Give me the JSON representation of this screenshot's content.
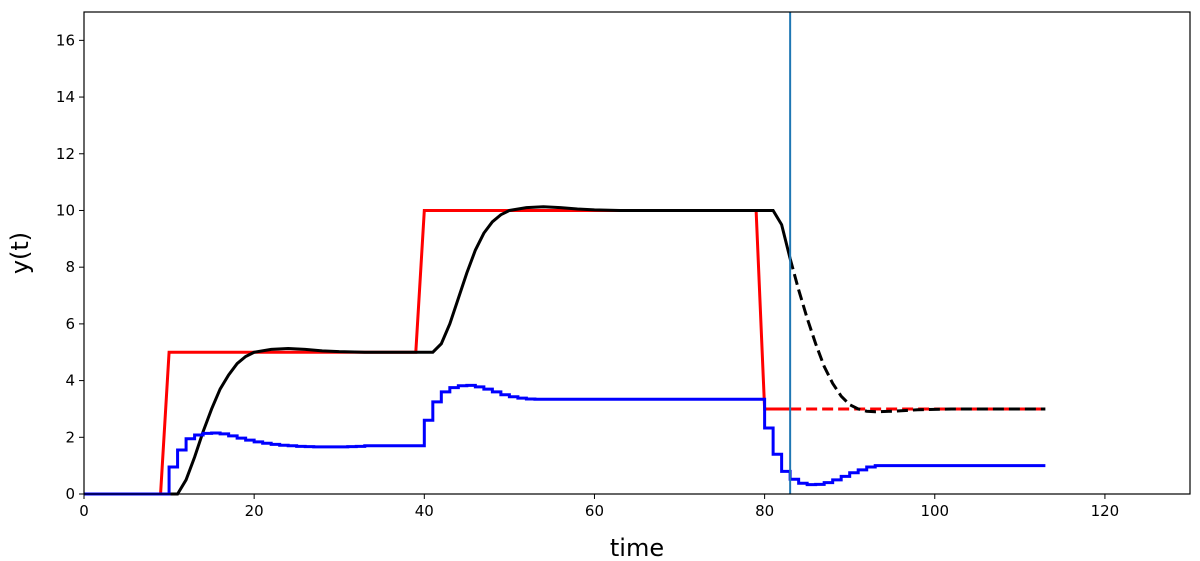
{
  "chart_data": {
    "type": "line",
    "title": "",
    "xlabel": "time",
    "ylabel": "y(t)",
    "xlim": [
      0,
      130
    ],
    "ylim": [
      0,
      17
    ],
    "x_ticks": [
      0,
      20,
      40,
      60,
      80,
      100,
      120
    ],
    "y_ticks": [
      0,
      2,
      4,
      6,
      8,
      10,
      12,
      14,
      16
    ],
    "grid": false,
    "vline": {
      "x": 83,
      "color": "#1f77b4"
    },
    "series": [
      {
        "color": "#ff0000",
        "style": "solid",
        "step": false,
        "points": [
          [
            0,
            0
          ],
          [
            9,
            0
          ],
          [
            10,
            5
          ],
          [
            39,
            5
          ],
          [
            40,
            10
          ],
          [
            79,
            10
          ],
          [
            80,
            3
          ],
          [
            83,
            3
          ]
        ]
      },
      {
        "color": "#ff0000",
        "style": "dashed",
        "step": false,
        "points": [
          [
            83,
            3
          ],
          [
            113,
            3
          ]
        ]
      },
      {
        "color": "#000000",
        "style": "solid",
        "step": false,
        "points": [
          [
            0,
            0
          ],
          [
            10,
            0
          ],
          [
            11,
            0
          ],
          [
            12,
            0.5
          ],
          [
            13,
            1.3
          ],
          [
            14,
            2.2
          ],
          [
            15,
            3.0
          ],
          [
            16,
            3.7
          ],
          [
            17,
            4.2
          ],
          [
            18,
            4.6
          ],
          [
            19,
            4.85
          ],
          [
            20,
            5.0
          ],
          [
            22,
            5.1
          ],
          [
            24,
            5.13
          ],
          [
            26,
            5.1
          ],
          [
            28,
            5.05
          ],
          [
            30,
            5.02
          ],
          [
            33,
            5.0
          ],
          [
            41,
            5.0
          ],
          [
            42,
            5.3
          ],
          [
            43,
            6.0
          ],
          [
            44,
            6.9
          ],
          [
            45,
            7.8
          ],
          [
            46,
            8.6
          ],
          [
            47,
            9.2
          ],
          [
            48,
            9.6
          ],
          [
            49,
            9.85
          ],
          [
            50,
            10.0
          ],
          [
            52,
            10.1
          ],
          [
            54,
            10.13
          ],
          [
            56,
            10.1
          ],
          [
            58,
            10.05
          ],
          [
            60,
            10.02
          ],
          [
            63,
            10.0
          ],
          [
            81,
            10.0
          ],
          [
            82,
            9.5
          ],
          [
            83,
            8.3
          ]
        ]
      },
      {
        "color": "#000000",
        "style": "dashed",
        "step": false,
        "points": [
          [
            83,
            8.3
          ],
          [
            84,
            7.2
          ],
          [
            85,
            6.2
          ],
          [
            86,
            5.3
          ],
          [
            87,
            4.5
          ],
          [
            88,
            3.9
          ],
          [
            89,
            3.45
          ],
          [
            90,
            3.15
          ],
          [
            91,
            3.0
          ],
          [
            92,
            2.92
          ],
          [
            93,
            2.9
          ],
          [
            95,
            2.92
          ],
          [
            98,
            2.97
          ],
          [
            102,
            3.0
          ],
          [
            113,
            3.0
          ]
        ]
      },
      {
        "color": "#0000ff",
        "style": "solid",
        "step": true,
        "points": [
          [
            0,
            0
          ],
          [
            10,
            0
          ],
          [
            10,
            0.95
          ],
          [
            11,
            1.55
          ],
          [
            12,
            1.95
          ],
          [
            13,
            2.08
          ],
          [
            14,
            2.14
          ],
          [
            15,
            2.15
          ],
          [
            16,
            2.12
          ],
          [
            17,
            2.05
          ],
          [
            18,
            1.97
          ],
          [
            19,
            1.9
          ],
          [
            20,
            1.84
          ],
          [
            21,
            1.79
          ],
          [
            22,
            1.75
          ],
          [
            23,
            1.72
          ],
          [
            24,
            1.7
          ],
          [
            25,
            1.68
          ],
          [
            26,
            1.67
          ],
          [
            27,
            1.66
          ],
          [
            28,
            1.66
          ],
          [
            29,
            1.66
          ],
          [
            30,
            1.66
          ],
          [
            31,
            1.67
          ],
          [
            32,
            1.68
          ],
          [
            33,
            1.7
          ],
          [
            34,
            1.7
          ],
          [
            39,
            1.7
          ],
          [
            40,
            2.6
          ],
          [
            41,
            3.25
          ],
          [
            42,
            3.6
          ],
          [
            43,
            3.75
          ],
          [
            44,
            3.82
          ],
          [
            45,
            3.83
          ],
          [
            46,
            3.78
          ],
          [
            47,
            3.7
          ],
          [
            48,
            3.6
          ],
          [
            49,
            3.5
          ],
          [
            50,
            3.43
          ],
          [
            51,
            3.38
          ],
          [
            52,
            3.35
          ],
          [
            53,
            3.34
          ],
          [
            54,
            3.34
          ],
          [
            79,
            3.34
          ],
          [
            80,
            2.33
          ],
          [
            81,
            1.4
          ],
          [
            82,
            0.8
          ],
          [
            83,
            0.52
          ],
          [
            84,
            0.38
          ],
          [
            85,
            0.33
          ],
          [
            86,
            0.34
          ],
          [
            87,
            0.4
          ],
          [
            88,
            0.5
          ],
          [
            89,
            0.62
          ],
          [
            90,
            0.75
          ],
          [
            91,
            0.85
          ],
          [
            92,
            0.95
          ],
          [
            93,
            1.0
          ],
          [
            113,
            1.0
          ]
        ]
      }
    ]
  }
}
